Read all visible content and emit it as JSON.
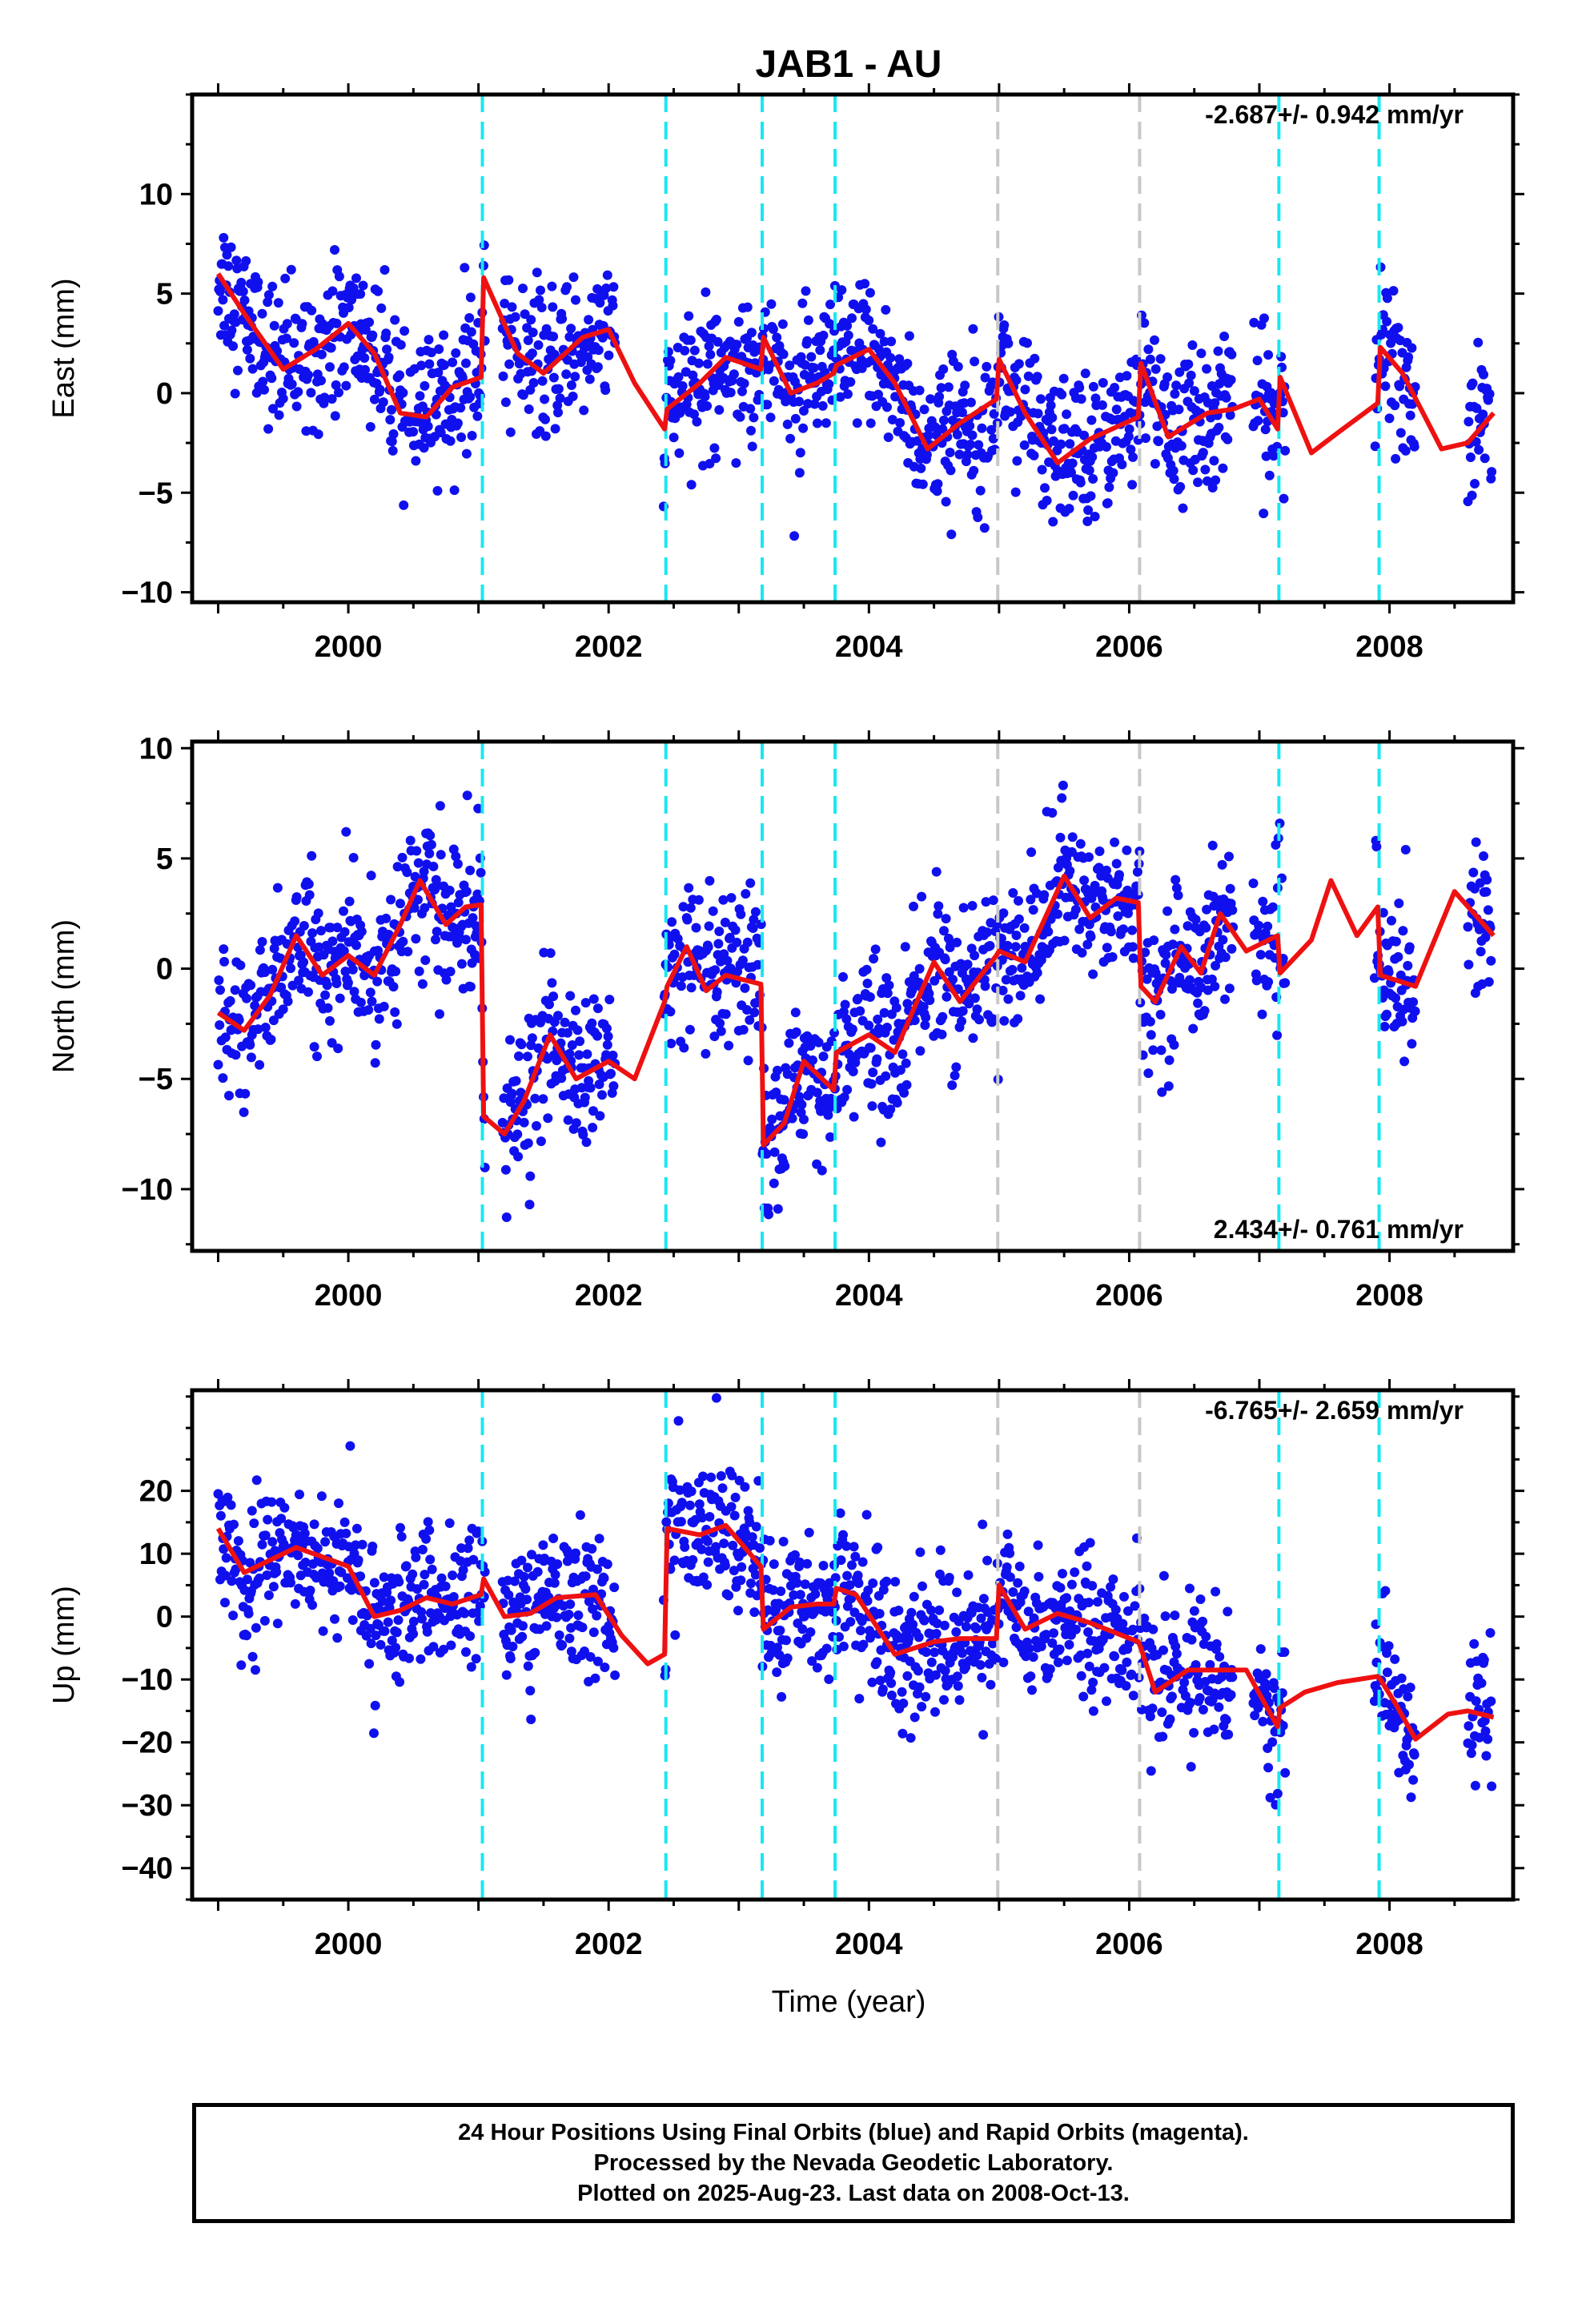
{
  "colors": {
    "data_points": "#1010ee",
    "model_line": "#ee1111",
    "break_cyan": "#18e8f0",
    "break_gray": "#c8c8c8",
    "frame": "#000000"
  },
  "chart_data": {
    "type": "scatter",
    "title": "JAB1 - AU",
    "xlabel": "Time (year)",
    "x_range": [
      1998.8,
      2008.95
    ],
    "x_ticks": [
      2000,
      2002,
      2004,
      2006,
      2008
    ],
    "vertical_breaks": [
      {
        "x": 2001.03,
        "style": "cyan"
      },
      {
        "x": 2002.44,
        "style": "cyan"
      },
      {
        "x": 2003.18,
        "style": "cyan"
      },
      {
        "x": 2003.74,
        "style": "cyan"
      },
      {
        "x": 2004.99,
        "style": "gray"
      },
      {
        "x": 2006.08,
        "style": "gray"
      },
      {
        "x": 2007.15,
        "style": "cyan"
      },
      {
        "x": 2007.92,
        "style": "cyan"
      }
    ],
    "panels": [
      {
        "name": "east",
        "ylabel": "East (mm)",
        "y_range": [
          -10.5,
          15
        ],
        "y_ticks": [
          -10,
          -5,
          0,
          5,
          10
        ],
        "rate_label": "-2.687+/- 0.942 mm/yr",
        "rate_position": "top-right",
        "model_knots": [
          [
            1999.0,
            6.0
          ],
          [
            1999.2,
            4.0
          ],
          [
            1999.5,
            1.2
          ],
          [
            1999.75,
            2.2
          ],
          [
            2000.0,
            3.5
          ],
          [
            2000.2,
            2.0
          ],
          [
            2000.4,
            -1.0
          ],
          [
            2000.6,
            -1.2
          ],
          [
            2000.8,
            0.3
          ],
          [
            2001.02,
            0.8
          ],
          [
            2001.04,
            5.8
          ],
          [
            2001.3,
            2.0
          ],
          [
            2001.5,
            1.0
          ],
          [
            2001.8,
            2.8
          ],
          [
            2002.0,
            3.2
          ],
          [
            2002.2,
            0.5
          ],
          [
            2002.43,
            -1.8
          ],
          [
            2002.45,
            -0.8
          ],
          [
            2002.7,
            0.5
          ],
          [
            2002.9,
            1.8
          ],
          [
            2003.17,
            1.2
          ],
          [
            2003.19,
            2.8
          ],
          [
            2003.4,
            0.0
          ],
          [
            2003.6,
            0.5
          ],
          [
            2003.73,
            1.0
          ],
          [
            2003.75,
            1.4
          ],
          [
            2004.0,
            2.2
          ],
          [
            2004.2,
            0.5
          ],
          [
            2004.45,
            -2.8
          ],
          [
            2004.7,
            -1.5
          ],
          [
            2004.98,
            -0.3
          ],
          [
            2005.0,
            1.7
          ],
          [
            2005.2,
            -1.0
          ],
          [
            2005.45,
            -3.5
          ],
          [
            2005.7,
            -2.3
          ],
          [
            2006.07,
            -1.2
          ],
          [
            2006.09,
            1.5
          ],
          [
            2006.3,
            -2.2
          ],
          [
            2006.6,
            -1.0
          ],
          [
            2006.8,
            -0.8
          ],
          [
            2007.0,
            -0.3
          ],
          [
            2007.14,
            -1.8
          ],
          [
            2007.16,
            0.8
          ],
          [
            2007.4,
            -3.0
          ],
          [
            2007.6,
            -2.0
          ],
          [
            2007.91,
            -0.5
          ],
          [
            2007.93,
            2.3
          ],
          [
            2008.1,
            1.0
          ],
          [
            2008.4,
            -2.8
          ],
          [
            2008.6,
            -2.5
          ],
          [
            2008.8,
            -1.0
          ]
        ],
        "scatter_noise": 1.8
      },
      {
        "name": "north",
        "ylabel": "North (mm)",
        "y_range": [
          -12.8,
          10.3
        ],
        "y_ticks": [
          -10,
          -5,
          0,
          5,
          10
        ],
        "rate_label": "2.434+/- 0.761 mm/yr",
        "rate_position": "bottom-right",
        "model_knots": [
          [
            1999.0,
            -2.0
          ],
          [
            1999.2,
            -2.8
          ],
          [
            1999.4,
            -1.2
          ],
          [
            1999.6,
            1.5
          ],
          [
            1999.8,
            -0.3
          ],
          [
            2000.0,
            0.6
          ],
          [
            2000.2,
            -0.3
          ],
          [
            2000.4,
            2.0
          ],
          [
            2000.55,
            4.0
          ],
          [
            2000.75,
            2.0
          ],
          [
            2000.9,
            2.8
          ],
          [
            2001.02,
            2.9
          ],
          [
            2001.04,
            -6.7
          ],
          [
            2001.2,
            -7.5
          ],
          [
            2001.35,
            -6.0
          ],
          [
            2001.55,
            -3.0
          ],
          [
            2001.75,
            -5.0
          ],
          [
            2002.0,
            -4.2
          ],
          [
            2002.2,
            -5.0
          ],
          [
            2002.43,
            -1.5
          ],
          [
            2002.45,
            -0.8
          ],
          [
            2002.6,
            1.0
          ],
          [
            2002.75,
            -1.0
          ],
          [
            2002.9,
            -0.3
          ],
          [
            2003.17,
            -0.7
          ],
          [
            2003.19,
            -8.0
          ],
          [
            2003.35,
            -7.0
          ],
          [
            2003.5,
            -4.2
          ],
          [
            2003.73,
            -5.5
          ],
          [
            2003.75,
            -3.8
          ],
          [
            2004.0,
            -3.0
          ],
          [
            2004.2,
            -3.8
          ],
          [
            2004.5,
            0.3
          ],
          [
            2004.7,
            -1.5
          ],
          [
            2004.98,
            0.6
          ],
          [
            2005.0,
            0.8
          ],
          [
            2005.2,
            0.3
          ],
          [
            2005.5,
            4.2
          ],
          [
            2005.7,
            2.3
          ],
          [
            2005.9,
            3.2
          ],
          [
            2006.07,
            3.0
          ],
          [
            2006.09,
            -0.8
          ],
          [
            2006.2,
            -1.5
          ],
          [
            2006.4,
            1.0
          ],
          [
            2006.55,
            -0.2
          ],
          [
            2006.7,
            2.5
          ],
          [
            2006.9,
            0.8
          ],
          [
            2007.14,
            1.5
          ],
          [
            2007.16,
            -0.2
          ],
          [
            2007.4,
            1.3
          ],
          [
            2007.55,
            4.0
          ],
          [
            2007.75,
            1.5
          ],
          [
            2007.91,
            2.8
          ],
          [
            2007.93,
            -0.3
          ],
          [
            2008.2,
            -0.8
          ],
          [
            2008.5,
            3.5
          ],
          [
            2008.8,
            1.5
          ]
        ],
        "scatter_noise": 1.7
      },
      {
        "name": "up",
        "ylabel": "Up (mm)",
        "y_range": [
          -45,
          36
        ],
        "y_ticks": [
          -40,
          -30,
          -20,
          -10,
          0,
          10,
          20
        ],
        "rate_label": "-6.765+/- 2.659 mm/yr",
        "rate_position": "top-right",
        "model_knots": [
          [
            1999.0,
            14.0
          ],
          [
            1999.2,
            7.0
          ],
          [
            1999.4,
            9.0
          ],
          [
            1999.6,
            11.0
          ],
          [
            1999.8,
            9.5
          ],
          [
            2000.0,
            8.0
          ],
          [
            2000.2,
            0.0
          ],
          [
            2000.4,
            1.0
          ],
          [
            2000.6,
            3.0
          ],
          [
            2000.8,
            2.0
          ],
          [
            2001.02,
            3.5
          ],
          [
            2001.04,
            6.0
          ],
          [
            2001.2,
            0.0
          ],
          [
            2001.4,
            0.5
          ],
          [
            2001.6,
            3.0
          ],
          [
            2001.9,
            3.5
          ],
          [
            2002.1,
            -3.0
          ],
          [
            2002.3,
            -7.5
          ],
          [
            2002.43,
            -6.0
          ],
          [
            2002.45,
            14.0
          ],
          [
            2002.7,
            13.0
          ],
          [
            2002.9,
            14.5
          ],
          [
            2003.17,
            8.0
          ],
          [
            2003.19,
            -2.0
          ],
          [
            2003.4,
            1.5
          ],
          [
            2003.6,
            2.0
          ],
          [
            2003.73,
            2.0
          ],
          [
            2003.75,
            4.5
          ],
          [
            2003.9,
            3.5
          ],
          [
            2004.2,
            -6.0
          ],
          [
            2004.5,
            -4.0
          ],
          [
            2004.7,
            -3.5
          ],
          [
            2004.98,
            -3.5
          ],
          [
            2005.0,
            5.0
          ],
          [
            2005.2,
            -2.0
          ],
          [
            2005.45,
            0.5
          ],
          [
            2005.7,
            -1.0
          ],
          [
            2006.07,
            -4.0
          ],
          [
            2006.09,
            -5.0
          ],
          [
            2006.2,
            -12.0
          ],
          [
            2006.45,
            -8.5
          ],
          [
            2006.7,
            -8.5
          ],
          [
            2006.9,
            -8.5
          ],
          [
            2007.14,
            -17.5
          ],
          [
            2007.16,
            -14.5
          ],
          [
            2007.35,
            -12.0
          ],
          [
            2007.6,
            -10.5
          ],
          [
            2007.91,
            -9.5
          ],
          [
            2007.93,
            -10.0
          ],
          [
            2008.05,
            -14.0
          ],
          [
            2008.2,
            -19.5
          ],
          [
            2008.45,
            -15.5
          ],
          [
            2008.6,
            -15.0
          ],
          [
            2008.8,
            -16.0
          ]
        ],
        "scatter_noise": 5.5
      }
    ]
  },
  "footer": {
    "line1": "24 Hour Positions Using Final Orbits (blue) and Rapid Orbits (magenta).",
    "line2": "Processed by the Nevada Geodetic Laboratory.",
    "line3": "Plotted on 2025-Aug-23. Last data on 2008-Oct-13."
  }
}
